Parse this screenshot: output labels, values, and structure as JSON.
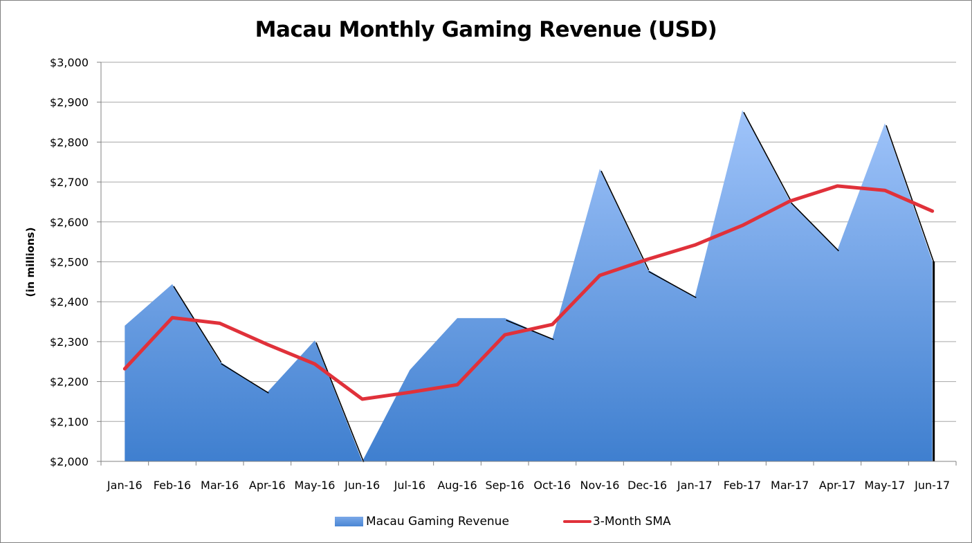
{
  "chart_data": {
    "type": "area",
    "title": "Macau Monthly Gaming Revenue (USD)",
    "xlabel": "",
    "ylabel": "(in millions)",
    "ylim": [
      2000,
      3000
    ],
    "yticks": [
      "$2,000",
      "$2,100",
      "$2,200",
      "$2,300",
      "$2,400",
      "$2,500",
      "$2,600",
      "$2,700",
      "$2,800",
      "$2,900",
      "$3,000"
    ],
    "grid": true,
    "legend_position": "bottom",
    "categories": [
      "Jan-16",
      "Feb-16",
      "Mar-16",
      "Apr-16",
      "May-16",
      "Jun-16",
      "Jul-16",
      "Aug-16",
      "Sep-16",
      "Oct-16",
      "Nov-16",
      "Dec-16",
      "Jan-17",
      "Feb-17",
      "Mar-17",
      "Apr-17",
      "May-17",
      "Jun-17"
    ],
    "series": [
      {
        "name": "Macau Gaming Revenue",
        "type": "area",
        "color": "#4a86d4",
        "values": [
          2340,
          2444,
          2250,
          2173,
          2303,
          2000,
          2229,
          2359,
          2359,
          2307,
          2733,
          2481,
          2412,
          2880,
          2653,
          2529,
          2847,
          2501
        ]
      },
      {
        "name": "3-Month SMA",
        "type": "line",
        "color": "#e0313a",
        "values": [
          2232,
          2360,
          2346,
          2293,
          2244,
          2156,
          2173,
          2192,
          2317,
          2343,
          2466,
          2506,
          2542,
          2591,
          2652,
          2690,
          2679,
          2627
        ]
      }
    ]
  },
  "legend": {
    "revenue_label": "Macau Gaming Revenue",
    "sma_label": "3-Month SMA"
  }
}
